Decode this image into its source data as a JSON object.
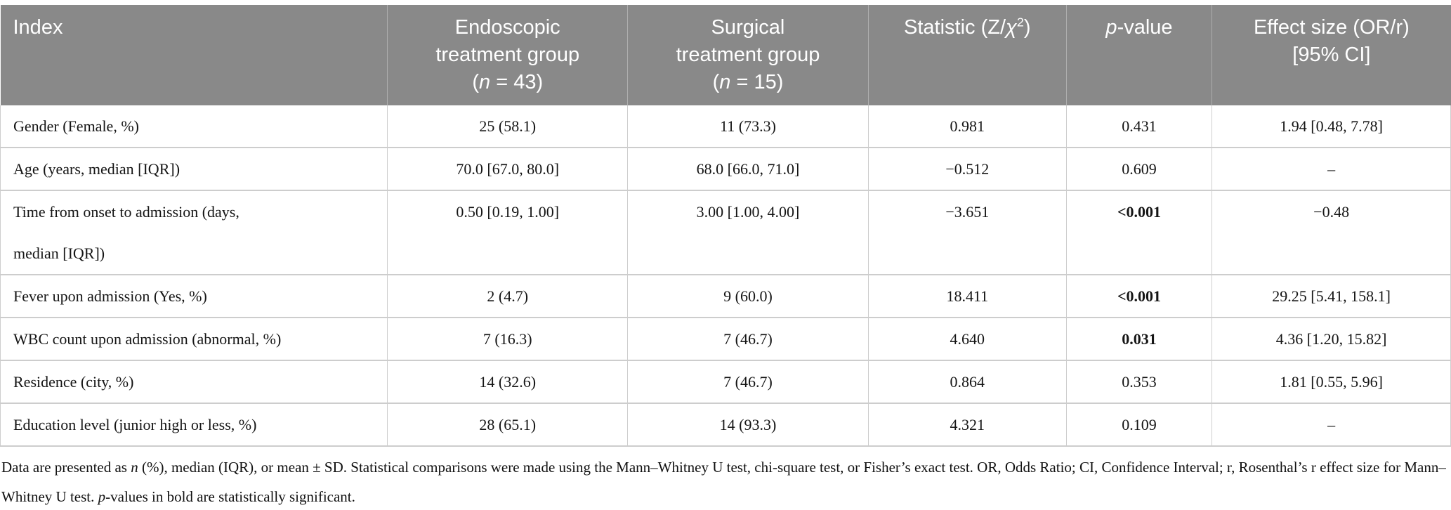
{
  "colors": {
    "header_bg": "#898989",
    "header_divider": "#aeaeae",
    "header_text": "#ffffff",
    "grid_line": "#cdcdcd",
    "body_text": "#151515",
    "page_bg": "#ffffff"
  },
  "table": {
    "columns": [
      {
        "id": "index",
        "width_pct": 26.7,
        "align": "left"
      },
      {
        "id": "endoscopic-group",
        "width_pct": 16.55,
        "align": "center"
      },
      {
        "id": "surgical-group",
        "width_pct": 16.6,
        "align": "center"
      },
      {
        "id": "statistic",
        "width_pct": 13.65,
        "align": "center"
      },
      {
        "id": "p-value",
        "width_pct": 10.05,
        "align": "center"
      },
      {
        "id": "effect-size",
        "width_pct": 16.45,
        "align": "center"
      }
    ],
    "header": [
      [
        [
          "Index"
        ]
      ],
      [
        [
          "Endoscopic"
        ],
        [
          "treatment group"
        ],
        [
          "(",
          {
            "text": "n",
            "italic": true
          },
          " = 43)"
        ]
      ],
      [
        [
          "Surgical"
        ],
        [
          "treatment group"
        ],
        [
          "(",
          {
            "text": "n",
            "italic": true
          },
          " = 15)"
        ]
      ],
      [
        [
          "Statistic (Z/",
          {
            "text": "χ",
            "italic": true
          },
          {
            "text": "2",
            "sup": true
          },
          ")"
        ]
      ],
      [
        [
          {
            "text": "p",
            "italic": true
          },
          "-value"
        ]
      ],
      [
        [
          "Effect size (OR/r)"
        ],
        [
          "[95% CI]"
        ]
      ]
    ],
    "rows": [
      [
        [
          [
            "Gender (Female, %)"
          ]
        ],
        [
          [
            "25 (58.1)"
          ]
        ],
        [
          [
            "11 (73.3)"
          ]
        ],
        [
          [
            "0.981"
          ]
        ],
        [
          [
            "0.431"
          ]
        ],
        [
          [
            "1.94 [0.48, 7.78]"
          ]
        ]
      ],
      [
        [
          [
            "Age (years, median [IQR])"
          ]
        ],
        [
          [
            "70.0 [67.0, 80.0]"
          ]
        ],
        [
          [
            "68.0 [66.0, 71.0]"
          ]
        ],
        [
          [
            "−0.512"
          ]
        ],
        [
          [
            "0.609"
          ]
        ],
        [
          [
            "–"
          ]
        ]
      ],
      [
        [
          [
            "Time from onset to admission (days,"
          ],
          [
            "median [IQR])"
          ]
        ],
        [
          [
            "0.50 [0.19, 1.00]"
          ]
        ],
        [
          [
            "3.00 [1.00, 4.00]"
          ]
        ],
        [
          [
            "−3.651"
          ]
        ],
        [
          [
            {
              "text": "<0.001",
              "bold": true
            }
          ]
        ],
        [
          [
            "−0.48"
          ]
        ]
      ],
      [
        [
          [
            "Fever upon admission (Yes, %)"
          ]
        ],
        [
          [
            "2 (4.7)"
          ]
        ],
        [
          [
            "9 (60.0)"
          ]
        ],
        [
          [
            "18.411"
          ]
        ],
        [
          [
            {
              "text": "<0.001",
              "bold": true
            }
          ]
        ],
        [
          [
            "29.25 [5.41, 158.1]"
          ]
        ]
      ],
      [
        [
          [
            "WBC count upon admission (abnormal, %)"
          ]
        ],
        [
          [
            "7 (16.3)"
          ]
        ],
        [
          [
            "7 (46.7)"
          ]
        ],
        [
          [
            "4.640"
          ]
        ],
        [
          [
            {
              "text": "0.031",
              "bold": true
            }
          ]
        ],
        [
          [
            "4.36 [1.20, 15.82]"
          ]
        ]
      ],
      [
        [
          [
            "Residence (city, %)"
          ]
        ],
        [
          [
            "14 (32.6)"
          ]
        ],
        [
          [
            "7 (46.7)"
          ]
        ],
        [
          [
            "0.864"
          ]
        ],
        [
          [
            "0.353"
          ]
        ],
        [
          [
            "1.81 [0.55, 5.96]"
          ]
        ]
      ],
      [
        [
          [
            "Education level (junior high or less, %)"
          ]
        ],
        [
          [
            "28 (65.1)"
          ]
        ],
        [
          [
            "14 (93.3)"
          ]
        ],
        [
          [
            "4.321"
          ]
        ],
        [
          [
            "0.109"
          ]
        ],
        [
          [
            "–"
          ]
        ]
      ]
    ]
  },
  "footnote": [
    "Data are presented as ",
    {
      "text": "n",
      "italic": true
    },
    " (%), median (IQR), or mean ± SD. Statistical comparisons were made using the Mann–Whitney U test, chi-square test, or Fisher’s exact test. OR, Odds Ratio; CI, Confidence Interval; r, Rosenthal’s r effect size for Mann–Whitney U test. ",
    {
      "text": "p",
      "italic": true
    },
    "-values in bold are statistically significant."
  ]
}
